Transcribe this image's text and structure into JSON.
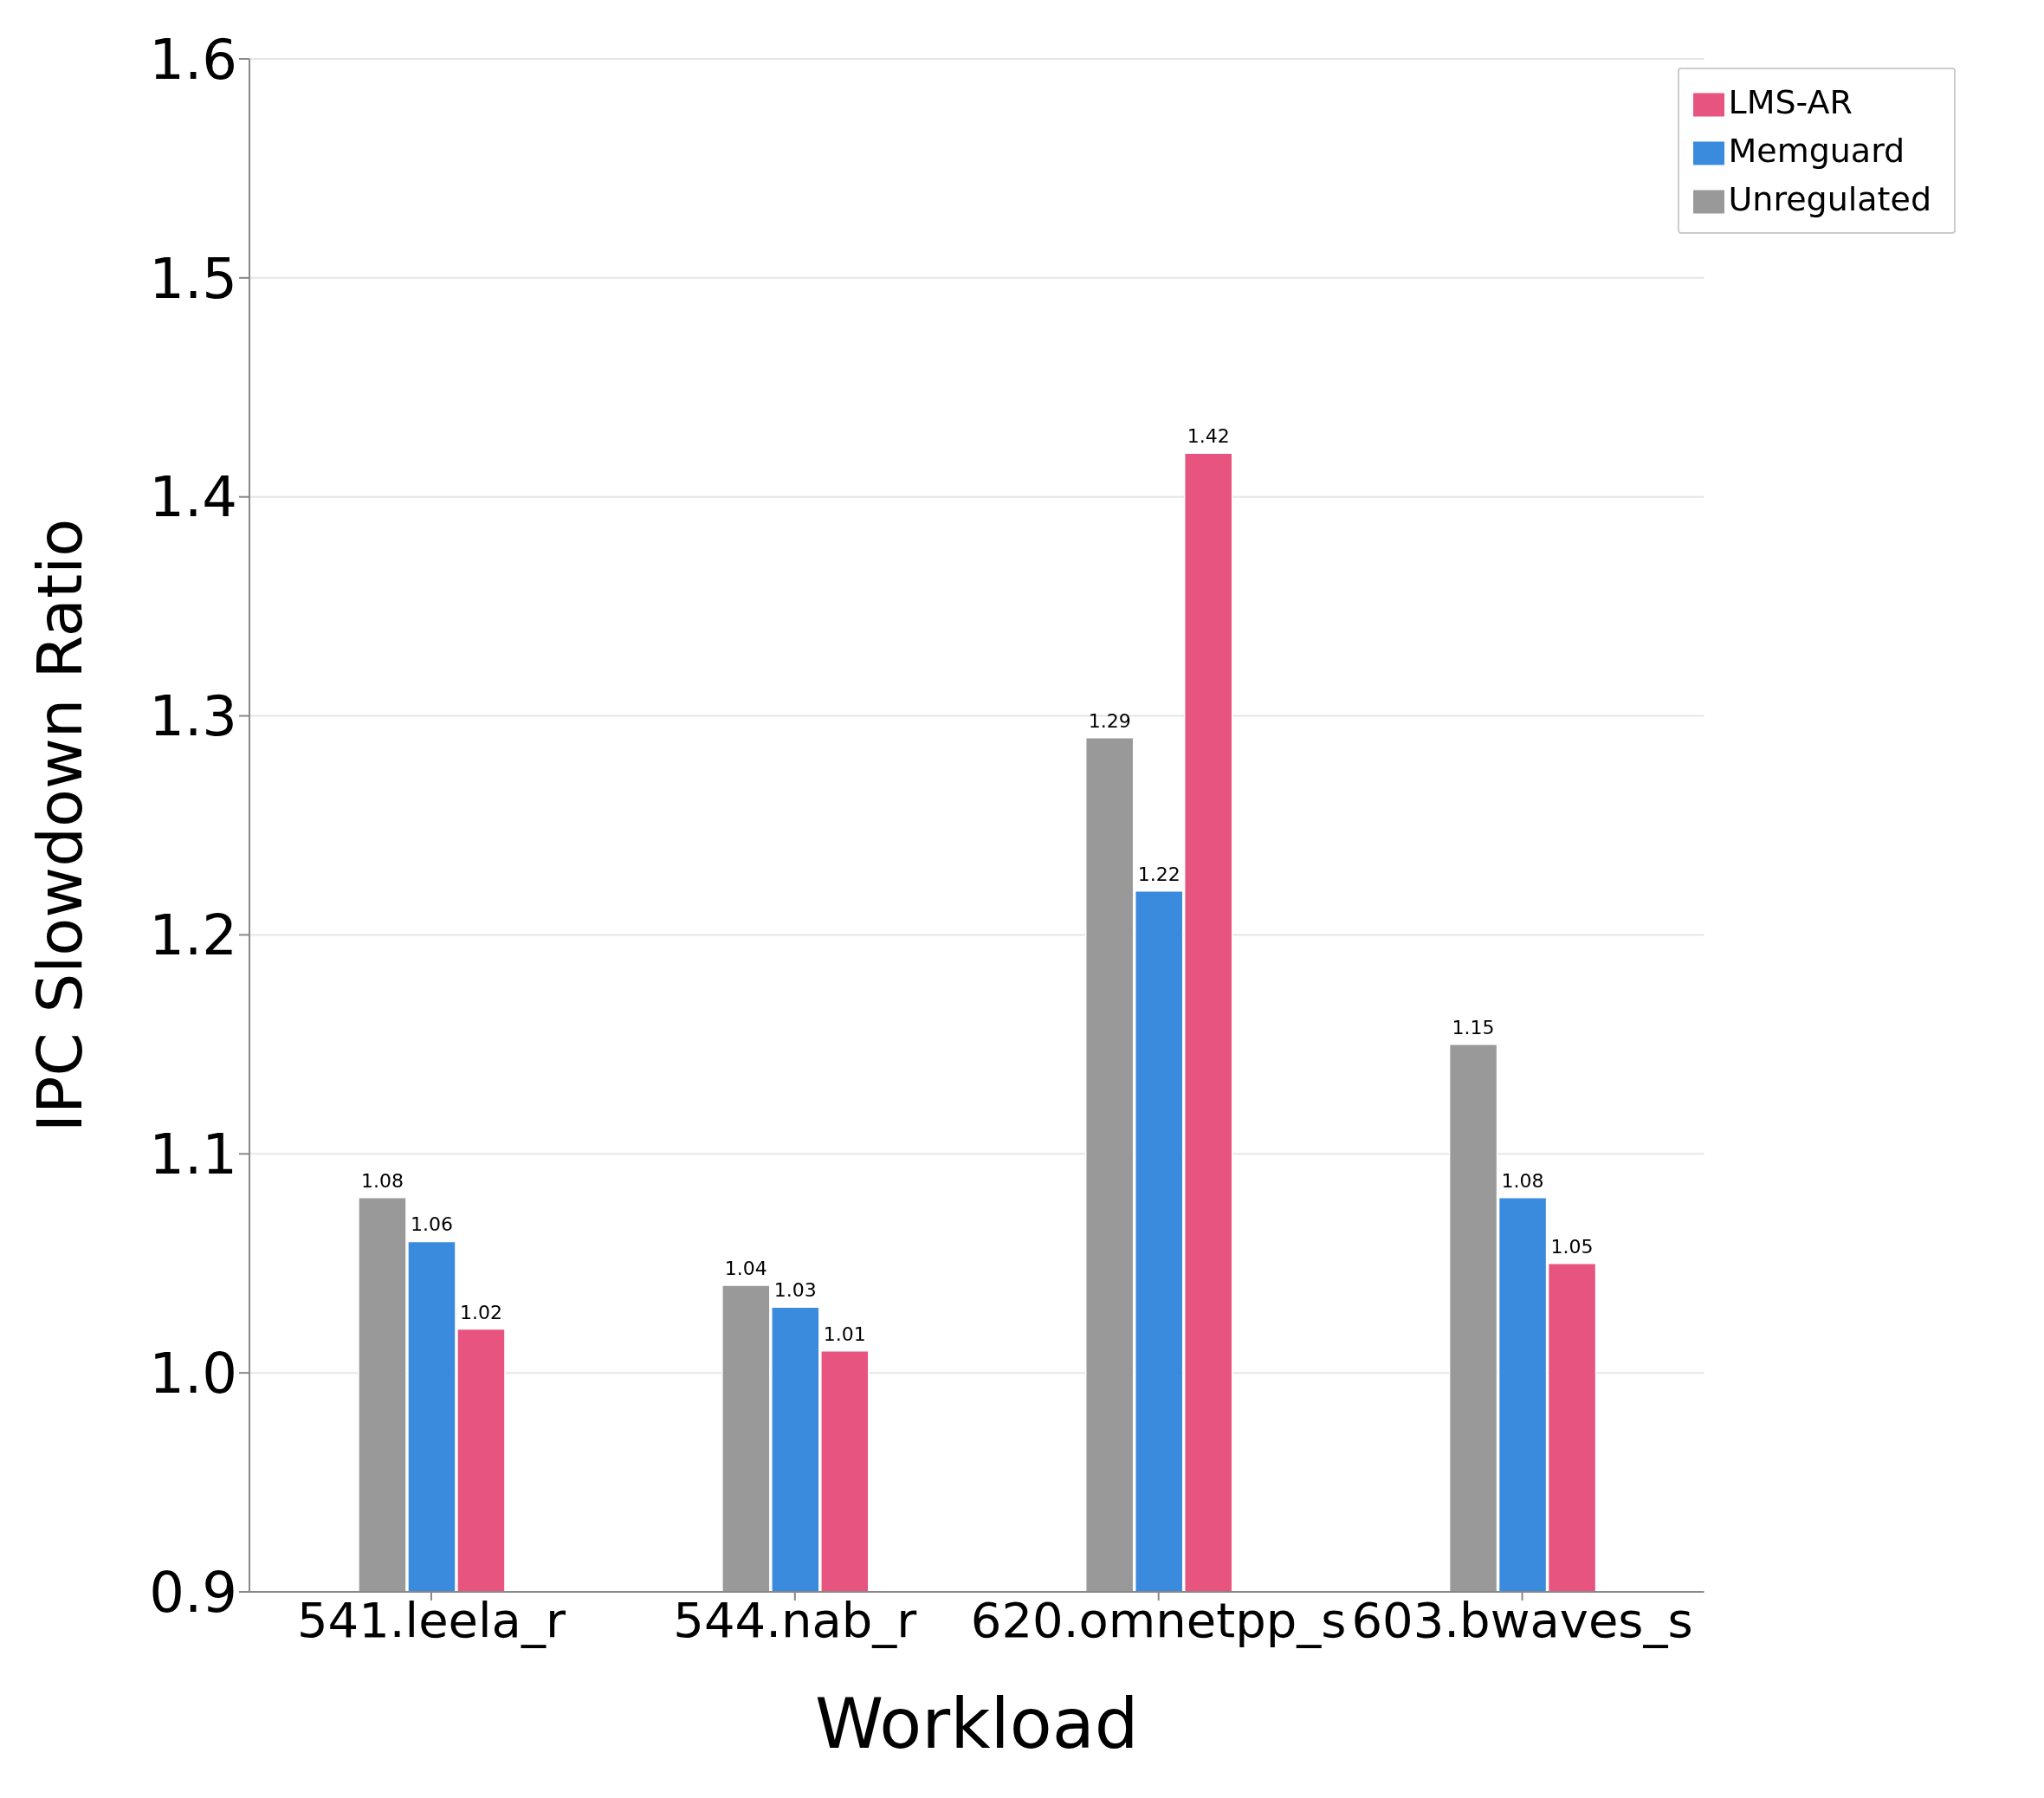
{
  "chart_data": {
    "type": "bar",
    "xlabel": "Workload",
    "ylabel": "IPC Slowdown Ratio",
    "categories": [
      "541.leela_r",
      "544.nab_r",
      "620.omnetpp_s",
      "603.bwaves_s"
    ],
    "series": [
      {
        "name": "Unregulated",
        "color": "#999999",
        "values": [
          1.08,
          1.04,
          1.29,
          1.15
        ]
      },
      {
        "name": "Memguard",
        "color": "#3a8ade",
        "values": [
          1.06,
          1.03,
          1.22,
          1.08
        ]
      },
      {
        "name": "LMS-AR",
        "color": "#e75480",
        "values": [
          1.02,
          1.01,
          1.42,
          1.05
        ]
      }
    ],
    "ylim": [
      0.9,
      1.6
    ],
    "yticks": [
      {
        "value": 0.9,
        "label": "0.9"
      },
      {
        "value": 1.0,
        "label": "1.0"
      },
      {
        "value": 1.1,
        "label": "1.1"
      },
      {
        "value": 1.2,
        "label": "1.2"
      },
      {
        "value": 1.3,
        "label": "1.3"
      },
      {
        "value": 1.4,
        "label": "1.4"
      },
      {
        "value": 1.5,
        "label": "1.5"
      },
      {
        "value": 1.6,
        "label": "1.6"
      }
    ],
    "grid": "y",
    "legend": "top right",
    "data_labels": true
  }
}
